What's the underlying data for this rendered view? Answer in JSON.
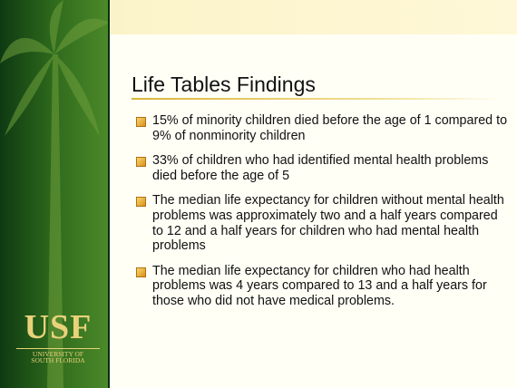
{
  "slide": {
    "title": "Life Tables Findings",
    "bullets": [
      "15% of minority children died before the age of 1 compared to 9% of nonminority children",
      "33% of children who had identified mental health problems died before the age of 5",
      "The median life expectancy for children without mental health problems was approximately two and a half years compared to 12 and a half years for children who had mental health problems",
      "The median life expectancy for children who had health problems was 4 years compared to 13 and a half years for those who did not have medical problems."
    ],
    "logo": {
      "name": "USF",
      "line1": "UNIVERSITY OF",
      "line2": "SOUTH FLORIDA"
    }
  }
}
